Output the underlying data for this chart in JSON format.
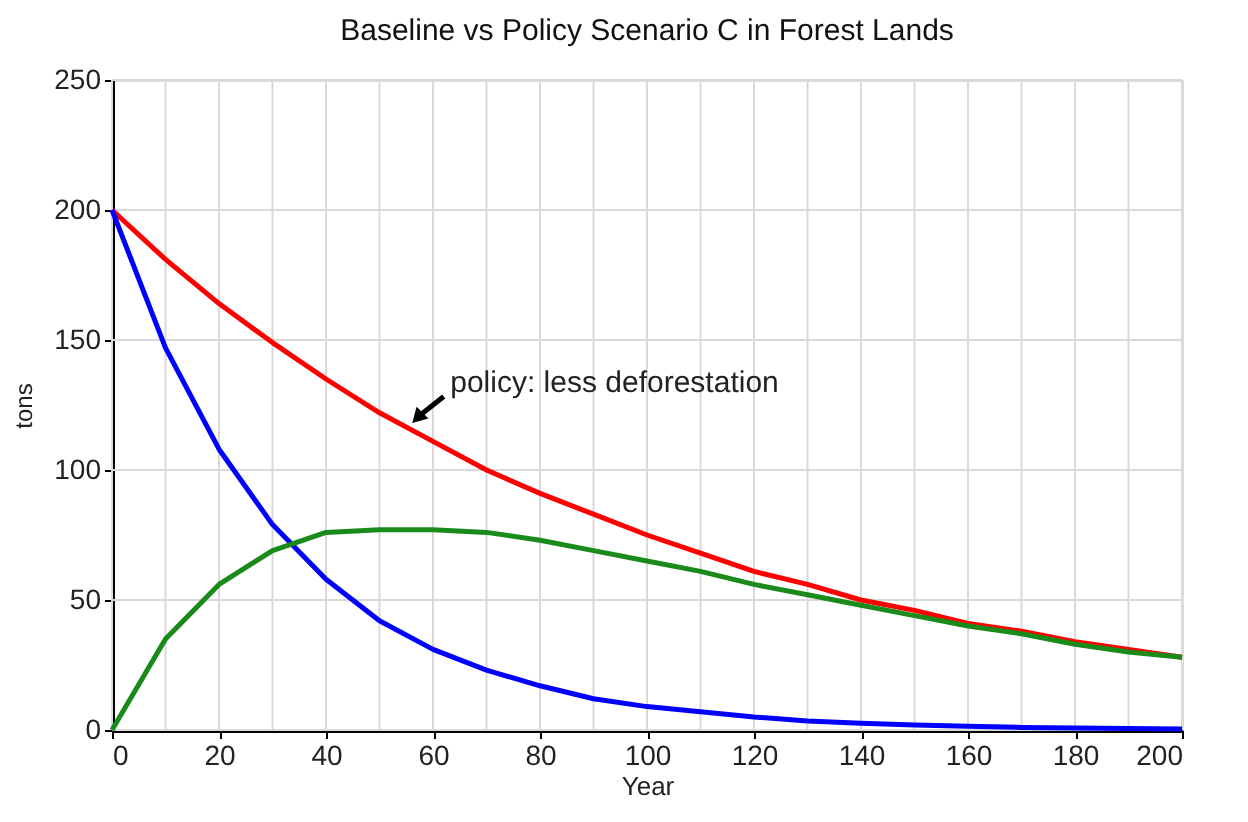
{
  "chart_data": {
    "type": "line",
    "title": "Baseline vs Policy Scenario C in Forest Lands",
    "xlabel": "Year",
    "ylabel": "tons",
    "x": [
      0,
      10,
      20,
      30,
      40,
      50,
      60,
      70,
      80,
      90,
      100,
      110,
      120,
      130,
      140,
      150,
      160,
      170,
      180,
      190,
      200
    ],
    "series": [
      {
        "color": "#ff0000",
        "values": [
          200,
          181,
          164,
          149,
          135,
          122,
          111,
          100,
          91,
          83,
          75,
          68,
          61,
          56,
          50,
          46,
          41,
          38,
          34,
          31,
          28
        ]
      },
      {
        "color": "#0000ff",
        "values": [
          200,
          147,
          108,
          79,
          58,
          42,
          31,
          23,
          17,
          12,
          9,
          7,
          5,
          3.5,
          2.6,
          1.9,
          1.4,
          1.0,
          0.8,
          0.6,
          0.4
        ]
      },
      {
        "color": "#1a8a1a",
        "values": [
          0,
          35,
          56,
          69,
          76,
          77,
          77,
          76,
          73,
          69,
          65,
          61,
          56,
          52,
          48,
          44,
          40,
          37,
          33,
          30,
          28
        ]
      }
    ],
    "xlim": [
      0,
      200
    ],
    "xticks": [
      0,
      20,
      40,
      60,
      80,
      100,
      120,
      140,
      160,
      180,
      200
    ],
    "ylim": [
      0,
      250
    ],
    "yticks": [
      0,
      50,
      100,
      150,
      200,
      250
    ],
    "grid": true,
    "legend": false,
    "marker": "none",
    "line_style": "solid",
    "annotations": [
      {
        "text": "policy: less deforestation",
        "x": 55,
        "y": 117
      }
    ]
  }
}
